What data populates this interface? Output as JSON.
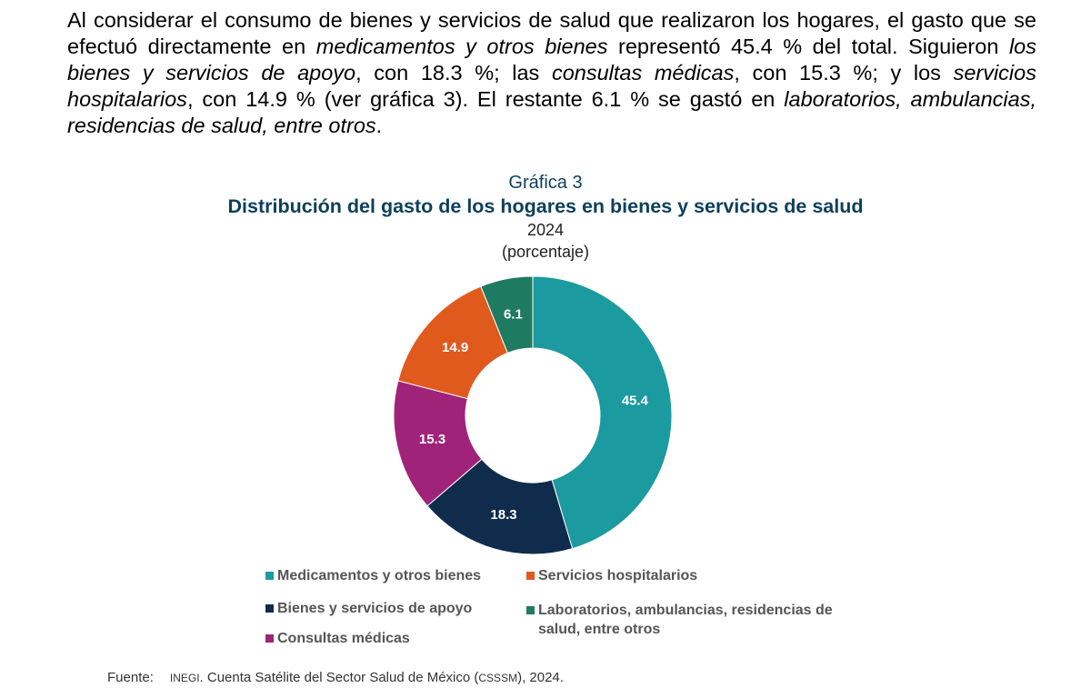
{
  "paragraph": {
    "p1": "Al considerar el consumo de bienes y servicios de salud que realizaron los hogares, el gasto que se efectuó directamente en ",
    "i1": "medicamentos y otros bienes",
    "p2": " representó 45.4 % del total. Siguieron ",
    "i2": "los bienes y servicios de apoyo",
    "p3": ", con 18.3 %; las ",
    "i3": "consultas médicas",
    "p4": ", con 15.3 %; y los ",
    "i4": "servicios hospitalarios",
    "p5": ", con 14.9 % (ver gráfica 3). El restante 6.1 % se gastó en ",
    "i5": "laboratorios, ambulancias, residencias de salud, entre otros",
    "p6": "."
  },
  "chart_data": {
    "type": "pie",
    "variant": "donut",
    "label": "Gráfica 3",
    "title": "Distribución del gasto de los hogares en bienes y servicios de salud",
    "year": "2024",
    "unit": "(porcentaje)",
    "categories": [
      "Medicamentos y otros bienes",
      "Bienes y servicios de apoyo",
      "Consultas médicas",
      "Servicios hospitalarios",
      "Laboratorios, ambulancias, residencias de salud, entre otros"
    ],
    "values": [
      45.4,
      18.3,
      15.3,
      14.9,
      6.1
    ],
    "value_labels": [
      "45.4",
      "18.3",
      "15.3",
      "14.9",
      "6.1"
    ],
    "colors": [
      "#1b9aa0",
      "#0f2c4c",
      "#a0237a",
      "#e05a1e",
      "#1f7a62"
    ],
    "legend": {
      "placement": "bottom",
      "items": [
        {
          "label": "Medicamentos y otros bienes",
          "color": "#1b9aa0"
        },
        {
          "label": "Servicios hospitalarios",
          "color": "#e05a1e"
        },
        {
          "label": "Bienes y servicios de apoyo",
          "color": "#0f2c4c"
        },
        {
          "label": "Laboratorios, ambulancias, residencias de salud, entre otros",
          "color": "#1f7a62"
        },
        {
          "label": "Consultas médicas",
          "color": "#a0237a"
        }
      ]
    }
  },
  "source": {
    "label": "Fuente:",
    "org": "INEGI",
    "text_a": ". Cuenta Satélite del Sector Salud de México (",
    "abbr": "CSSSM",
    "text_b": "), 2024."
  }
}
